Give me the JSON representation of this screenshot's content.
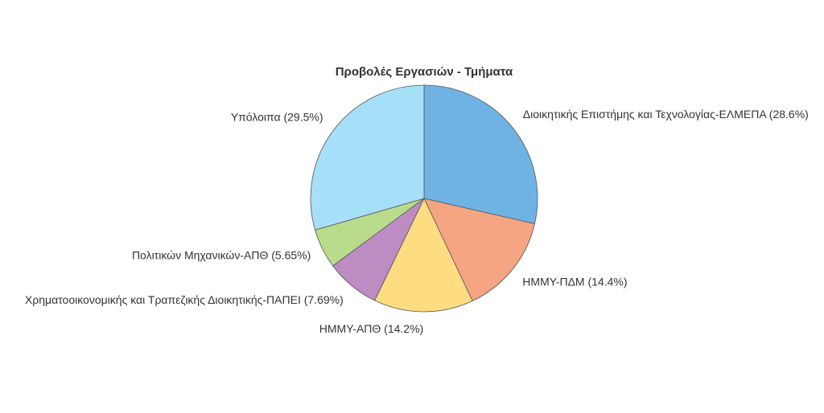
{
  "chart_data": {
    "type": "pie",
    "title": "Προβολές Εργασιών - Τμήματα",
    "start_angle_deg": 0,
    "direction": "clockwise",
    "slices": [
      {
        "label": "Διοικητικής Επιστήμης και Τεχνολογίας-ΕΛΜΕΠΑ (28.6%)",
        "value": 28.6,
        "color": "#6fb3e4"
      },
      {
        "label": "ΗΜΜΥ-ΠΔΜ (14.4%)",
        "value": 14.4,
        "color": "#f6a583"
      },
      {
        "label": "ΗΜΜΥ-ΑΠΘ (14.2%)",
        "value": 14.2,
        "color": "#fddc82"
      },
      {
        "label": "Χρηματοοικονομικής και Τραπεζικής Διοικητικής-ΠΑΠΕΙ (7.69%)",
        "value": 7.69,
        "color": "#bd8cc2"
      },
      {
        "label": "Πολιτικών Μηχανικών-ΑΠΘ (5.65%)",
        "value": 5.65,
        "color": "#b8db8c"
      },
      {
        "label": "Υπόλοιπα (29.5%)",
        "value": 29.5,
        "color": "#a6dff8"
      }
    ]
  }
}
